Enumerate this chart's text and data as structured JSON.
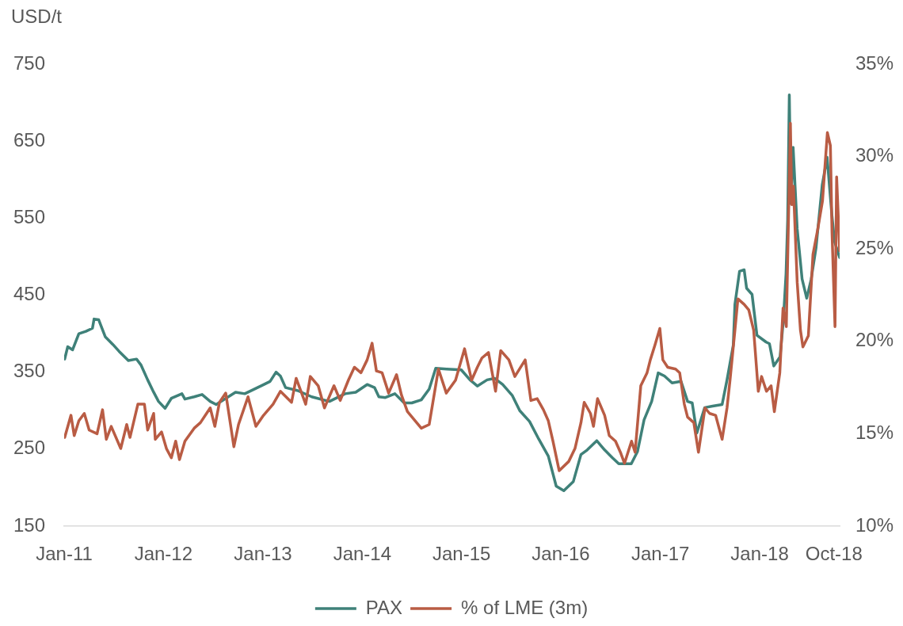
{
  "chart_data": {
    "type": "line",
    "ylabel": "USD/t",
    "legend": "bottom",
    "xlim": [
      "2011-01-01",
      "2018-10-22"
    ],
    "xticks": [
      {
        "value": "2011-01",
        "label": "Jan-11"
      },
      {
        "value": "2012-01",
        "label": "Jan-12"
      },
      {
        "value": "2013-01",
        "label": "Jan-13"
      },
      {
        "value": "2014-01",
        "label": "Jan-14"
      },
      {
        "value": "2015-01",
        "label": "Jan-15"
      },
      {
        "value": "2016-01",
        "label": "Jan-16"
      },
      {
        "value": "2017-01",
        "label": "Jan-17"
      },
      {
        "value": "2018-01",
        "label": "Jan-18"
      },
      {
        "value": "2018-10",
        "label": "Oct-18"
      }
    ],
    "ylim": [
      150,
      750
    ],
    "yticks": [
      150,
      250,
      350,
      450,
      550,
      650,
      750
    ],
    "y2lim": [
      10,
      35
    ],
    "y2ticks": [
      {
        "value": 10,
        "label": "10%"
      },
      {
        "value": 15,
        "label": "15%"
      },
      {
        "value": 20,
        "label": "20%"
      },
      {
        "value": 25,
        "label": "25%"
      },
      {
        "value": 30,
        "label": "30%"
      },
      {
        "value": 35,
        "label": "35%"
      }
    ],
    "series": [
      {
        "name": "PAX",
        "color": "#3f8179",
        "x": [
          "2011-01-03",
          "2011-01-14",
          "2011-02-01",
          "2011-02-24",
          "2011-03-22",
          "2011-04-15",
          "2011-04-21",
          "2011-05-08",
          "2011-06-01",
          "2011-06-29",
          "2011-07-22",
          "2011-08-25",
          "2011-09-24",
          "2011-10-11",
          "2011-11-04",
          "2011-11-26",
          "2011-12-14",
          "2012-01-07",
          "2012-01-30",
          "2012-03-09",
          "2012-03-20",
          "2012-04-23",
          "2012-05-22",
          "2012-06-21",
          "2012-07-13",
          "2012-09-22",
          "2012-10-26",
          "2012-12-24",
          "2013-01-27",
          "2013-02-18",
          "2013-03-06",
          "2013-03-25",
          "2013-05-09",
          "2013-06-29",
          "2013-09-02",
          "2013-10-30",
          "2013-12-08",
          "2014-01-19",
          "2014-02-15",
          "2014-03-03",
          "2014-03-27",
          "2014-05-01",
          "2014-06-04",
          "2014-07-02",
          "2014-08-06",
          "2014-09-04",
          "2014-09-28",
          "2014-11-07",
          "2014-12-31",
          "2015-02-01",
          "2015-02-28",
          "2015-04-05",
          "2015-05-02",
          "2015-06-01",
          "2015-07-06",
          "2015-08-03",
          "2015-09-08",
          "2015-10-12",
          "2015-11-16",
          "2015-12-15",
          "2016-01-12",
          "2016-02-16",
          "2016-03-15",
          "2016-04-07",
          "2016-05-12",
          "2016-06-10",
          "2016-07-08",
          "2016-08-01",
          "2016-09-16",
          "2016-10-09",
          "2016-11-02",
          "2016-11-30",
          "2016-12-24",
          "2017-01-16",
          "2017-02-13",
          "2017-03-18",
          "2017-04-11",
          "2017-04-28",
          "2017-05-15",
          "2017-06-13",
          "2017-07-12",
          "2017-08-16",
          "2017-09-03",
          "2017-09-26",
          "2017-10-02",
          "2017-10-19",
          "2017-11-05",
          "2017-11-14",
          "2017-12-04",
          "2017-12-22",
          "2018-01-25",
          "2018-02-06",
          "2018-02-22",
          "2018-03-17",
          "2018-03-29",
          "2018-04-08",
          "2018-04-14",
          "2018-04-20",
          "2018-04-26",
          "2018-05-04",
          "2018-05-19",
          "2018-06-06",
          "2018-06-23",
          "2018-07-09",
          "2018-07-27",
          "2018-08-19",
          "2018-09-06",
          "2018-09-23",
          "2018-10-03",
          "2018-10-22"
        ],
        "values": [
          367,
          383,
          379,
          400,
          403,
          407,
          419,
          418,
          396,
          386,
          377,
          365,
          367,
          359,
          340,
          324,
          312,
          303,
          316,
          322,
          315,
          318,
          321,
          312,
          308,
          324,
          322,
          332,
          338,
          350,
          345,
          330,
          326,
          318,
          312,
          322,
          324,
          334,
          330,
          318,
          317,
          322,
          310,
          310,
          314,
          328,
          355,
          354,
          353,
          340,
          332,
          340,
          342,
          334,
          320,
          300,
          286,
          263,
          241,
          202,
          196,
          208,
          243,
          249,
          261,
          249,
          239,
          231,
          231,
          247,
          288,
          312,
          349,
          345,
          336,
          338,
          312,
          310,
          271,
          304,
          306,
          308,
          340,
          385,
          438,
          481,
          483,
          459,
          451,
          398,
          389,
          387,
          358,
          370,
          417,
          478,
          548,
          710,
          569,
          642,
          536,
          471,
          446,
          470,
          511,
          593,
          629,
          556,
          520,
          499
        ]
      },
      {
        "name": "% of LME (3m)",
        "color": "#b95c44",
        "axis": "y2",
        "x": [
          "2011-01-03",
          "2011-01-26",
          "2011-02-07",
          "2011-02-24",
          "2011-03-16",
          "2011-04-03",
          "2011-05-02",
          "2011-05-22",
          "2011-06-05",
          "2011-06-23",
          "2011-07-28",
          "2011-08-19",
          "2011-08-31",
          "2011-09-29",
          "2011-10-23",
          "2011-11-04",
          "2011-11-26",
          "2011-12-02",
          "2011-12-25",
          "2012-01-12",
          "2012-01-30",
          "2012-02-15",
          "2012-02-29",
          "2012-03-20",
          "2012-04-23",
          "2012-05-16",
          "2012-06-21",
          "2012-07-08",
          "2012-07-25",
          "2012-08-17",
          "2012-09-16",
          "2012-10-03",
          "2012-11-07",
          "2012-12-06",
          "2013-01-03",
          "2013-02-07",
          "2013-03-06",
          "2013-04-16",
          "2013-05-03",
          "2013-06-07",
          "2013-06-24",
          "2013-07-23",
          "2013-08-15",
          "2013-09-19",
          "2013-10-12",
          "2013-11-11",
          "2013-12-03",
          "2013-12-27",
          "2014-01-19",
          "2014-02-06",
          "2014-02-22",
          "2014-03-15",
          "2014-04-08",
          "2014-05-07",
          "2014-05-25",
          "2014-06-16",
          "2014-08-06",
          "2014-09-04",
          "2014-10-08",
          "2014-11-06",
          "2014-12-10",
          "2015-01-12",
          "2015-02-07",
          "2015-02-28",
          "2015-03-17",
          "2015-04-10",
          "2015-05-06",
          "2015-05-25",
          "2015-06-24",
          "2015-07-16",
          "2015-08-23",
          "2015-09-13",
          "2015-10-06",
          "2015-10-29",
          "2015-11-16",
          "2015-12-03",
          "2015-12-26",
          "2016-01-30",
          "2016-02-22",
          "2016-03-15",
          "2016-03-27",
          "2016-04-19",
          "2016-04-30",
          "2016-05-15",
          "2016-06-10",
          "2016-06-27",
          "2016-07-20",
          "2016-08-07",
          "2016-08-22",
          "2016-09-17",
          "2016-09-30",
          "2016-10-21",
          "2016-11-13",
          "2016-11-25",
          "2016-12-12",
          "2016-12-30",
          "2017-01-10",
          "2017-01-28",
          "2017-02-26",
          "2017-03-13",
          "2017-03-30",
          "2017-04-11",
          "2017-05-04",
          "2017-05-21",
          "2017-06-14",
          "2017-07-01",
          "2017-07-23",
          "2017-08-16",
          "2017-09-03",
          "2017-09-14",
          "2017-10-02",
          "2017-10-13",
          "2017-11-05",
          "2017-11-22",
          "2017-12-10",
          "2017-12-27",
          "2018-01-08",
          "2018-01-26",
          "2018-02-12",
          "2018-02-24",
          "2018-03-16",
          "2018-03-28",
          "2018-04-09",
          "2018-04-24",
          "2018-04-29",
          "2018-05-05",
          "2018-05-19",
          "2018-05-31",
          "2018-06-09",
          "2018-06-29",
          "2018-07-16",
          "2018-08-03",
          "2018-08-20",
          "2018-09-07",
          "2018-09-18",
          "2018-09-24",
          "2018-10-05",
          "2018-10-11",
          "2018-10-22"
        ],
        "values": [
          14.8,
          16.0,
          14.9,
          15.7,
          16.1,
          15.2,
          15.0,
          16.3,
          14.7,
          15.4,
          14.2,
          15.5,
          14.8,
          16.6,
          16.6,
          15.2,
          16.1,
          14.7,
          15.1,
          14.2,
          13.7,
          14.6,
          13.6,
          14.6,
          15.3,
          15.6,
          16.4,
          15.4,
          16.7,
          17.2,
          14.3,
          15.5,
          17.0,
          15.4,
          16.0,
          16.6,
          17.3,
          16.7,
          18.0,
          16.6,
          18.1,
          17.6,
          16.4,
          17.6,
          16.8,
          17.9,
          18.6,
          18.3,
          19.0,
          19.9,
          18.4,
          18.3,
          17.2,
          18.2,
          17.1,
          16.2,
          15.3,
          15.5,
          18.5,
          17.2,
          17.9,
          19.6,
          17.9,
          18.6,
          19.1,
          19.4,
          17.3,
          19.5,
          19.0,
          18.1,
          19.0,
          16.8,
          16.9,
          16.3,
          15.7,
          14.6,
          13.0,
          13.5,
          14.2,
          15.6,
          16.7,
          16.1,
          15.4,
          16.9,
          16.0,
          14.9,
          14.6,
          14.0,
          13.4,
          14.6,
          14.0,
          17.6,
          18.3,
          19.0,
          19.8,
          20.7,
          19.0,
          18.6,
          18.5,
          18.3,
          16.6,
          15.9,
          15.6,
          14.0,
          16.4,
          16.1,
          16.0,
          14.7,
          16.4,
          17.9,
          20.6,
          22.3,
          22.0,
          21.7,
          20.6,
          17.3,
          18.1,
          17.3,
          17.6,
          16.2,
          18.3,
          21.8,
          20.8,
          31.8,
          27.4,
          28.4,
          23.2,
          20.6,
          19.7,
          20.3,
          24.7,
          26.1,
          27.6,
          31.3,
          30.6,
          25.9,
          20.8,
          28.9,
          24.9
        ]
      }
    ]
  }
}
